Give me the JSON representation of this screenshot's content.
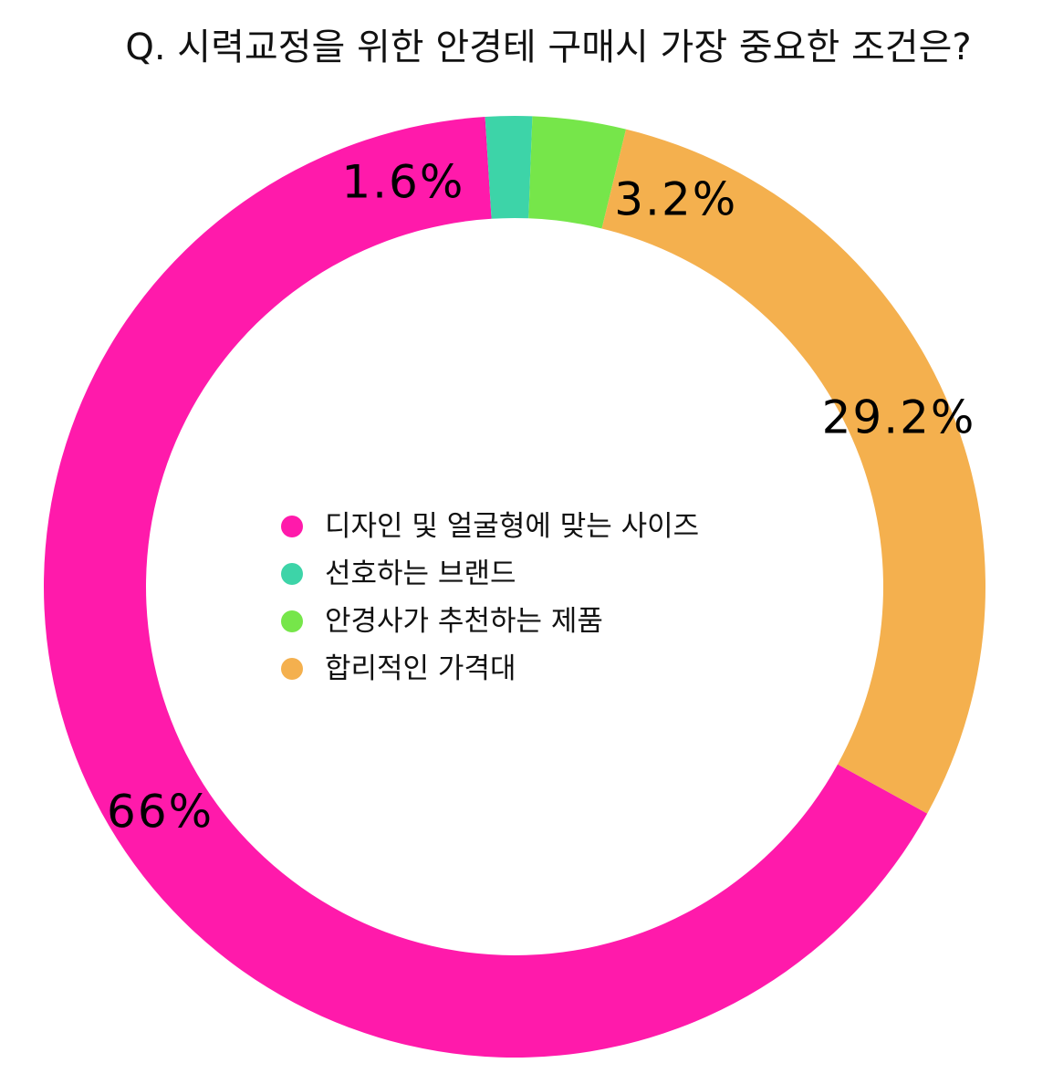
{
  "chart_data": {
    "type": "pie",
    "variant": "donut",
    "title": "Q. 시력교정을 위한 안경테 구매시 가장 중요한 조건은?",
    "categories": [
      "디자인 및 얼굴형에 맞는 사이즈",
      "선호하는 브랜드",
      "안경사가 추천하는 제품",
      "합리적인 가격대"
    ],
    "values": [
      66,
      1.6,
      3.2,
      29.2
    ],
    "unit": "%",
    "colors": [
      "#FF1AAB",
      "#3DD4A8",
      "#76E64A",
      "#F4B04E"
    ],
    "legend": "center"
  }
}
